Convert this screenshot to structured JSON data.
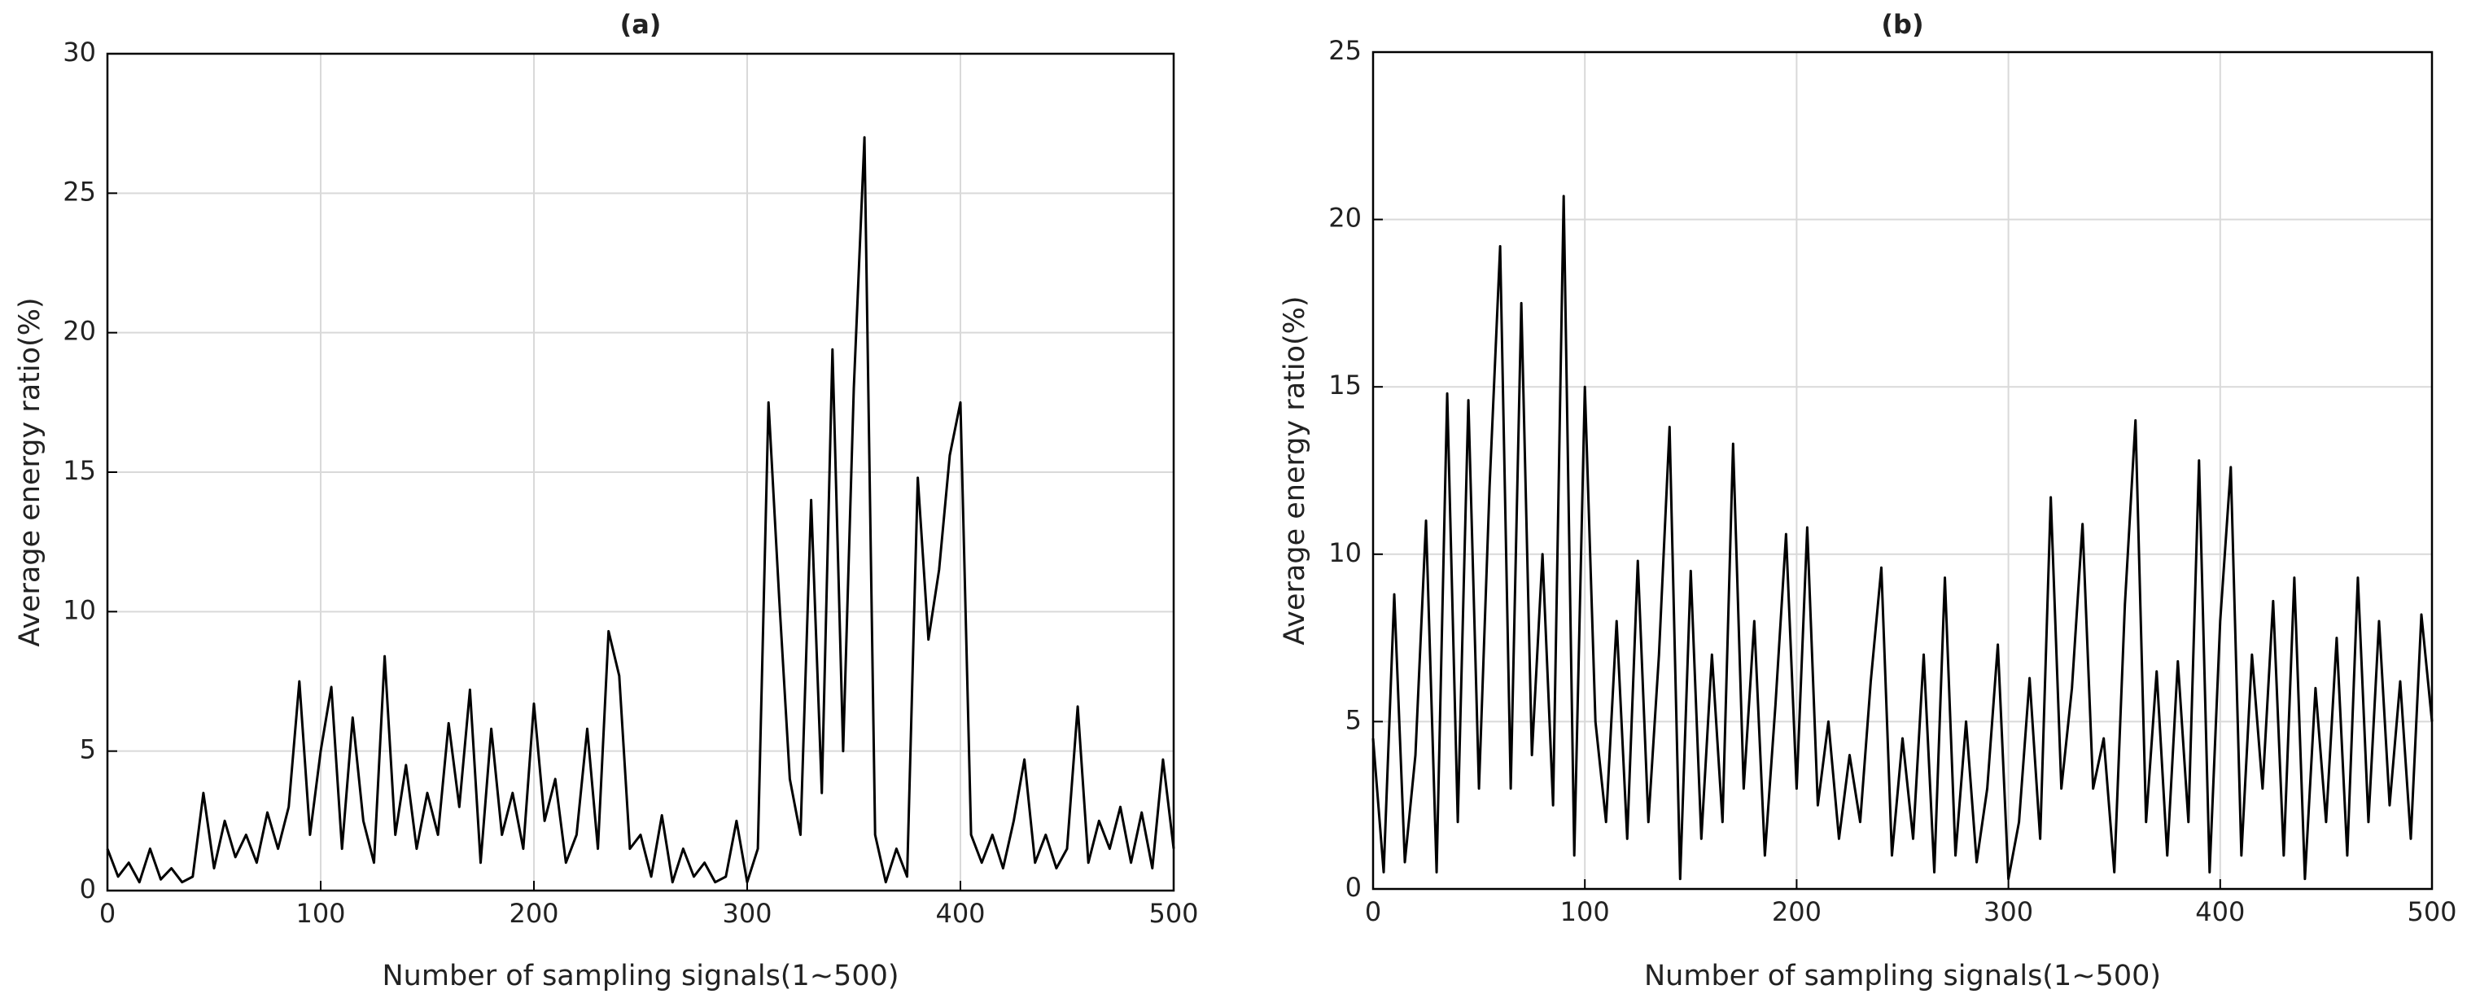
{
  "chart_data": [
    {
      "type": "line",
      "title": "(a)",
      "x_label": "Number of sampling signals(1~500)",
      "y_label": "Average energy ratio(%)",
      "xlim": [
        0,
        500
      ],
      "xticks": [
        0,
        100,
        200,
        300,
        400,
        500
      ],
      "ylim": [
        0,
        30
      ],
      "yticks": [
        0,
        5,
        10,
        15,
        20,
        25,
        30
      ],
      "grid": true,
      "color": "#000000",
      "x": [
        0,
        5,
        10,
        15,
        20,
        25,
        30,
        35,
        40,
        45,
        50,
        55,
        60,
        65,
        70,
        75,
        80,
        85,
        90,
        95,
        100,
        105,
        110,
        115,
        120,
        125,
        130,
        135,
        140,
        145,
        150,
        155,
        160,
        165,
        170,
        175,
        180,
        185,
        190,
        195,
        200,
        205,
        210,
        215,
        220,
        225,
        230,
        235,
        240,
        245,
        250,
        255,
        260,
        265,
        270,
        275,
        280,
        285,
        290,
        295,
        300,
        305,
        310,
        315,
        320,
        325,
        330,
        335,
        340,
        345,
        350,
        355,
        360,
        365,
        370,
        375,
        380,
        385,
        390,
        395,
        400,
        405,
        410,
        415,
        420,
        425,
        430,
        435,
        440,
        445,
        450,
        455,
        460,
        465,
        470,
        475,
        480,
        485,
        490,
        495,
        500
      ],
      "values": [
        1.5,
        0.5,
        1.0,
        0.3,
        1.5,
        0.4,
        0.8,
        0.3,
        0.5,
        3.5,
        0.8,
        2.5,
        1.2,
        2.0,
        1.0,
        2.8,
        1.5,
        3.0,
        7.5,
        2.0,
        5.0,
        7.3,
        1.5,
        6.2,
        2.5,
        1.0,
        8.4,
        2.0,
        4.5,
        1.5,
        3.5,
        2.0,
        6.0,
        3.0,
        7.2,
        1.0,
        5.8,
        2.0,
        3.5,
        1.5,
        6.7,
        2.5,
        4.0,
        1.0,
        2.0,
        5.8,
        1.5,
        9.3,
        7.7,
        1.5,
        2.0,
        0.5,
        2.7,
        0.3,
        1.5,
        0.5,
        1.0,
        0.3,
        0.5,
        2.5,
        0.3,
        1.5,
        17.5,
        10.5,
        4.0,
        2.0,
        14.0,
        3.5,
        19.4,
        5.0,
        18.0,
        27.0,
        2.0,
        0.3,
        1.5,
        0.5,
        14.8,
        9.0,
        11.5,
        15.6,
        17.5,
        2.0,
        1.0,
        2.0,
        0.8,
        2.5,
        4.7,
        1.0,
        2.0,
        0.8,
        1.5,
        6.6,
        1.0,
        2.5,
        1.5,
        3.0,
        1.0,
        2.8,
        0.8,
        4.7,
        1.5
      ]
    },
    {
      "type": "line",
      "title": "(b)",
      "x_label": "Number of sampling signals(1~500)",
      "y_label": "Average energy ratio(%)",
      "xlim": [
        0,
        500
      ],
      "xticks": [
        0,
        100,
        200,
        300,
        400,
        500
      ],
      "ylim": [
        0,
        25
      ],
      "yticks": [
        0,
        5,
        10,
        15,
        20,
        25
      ],
      "grid": true,
      "color": "#000000",
      "x": [
        0,
        5,
        10,
        15,
        20,
        25,
        30,
        35,
        40,
        45,
        50,
        55,
        60,
        65,
        70,
        75,
        80,
        85,
        90,
        95,
        100,
        105,
        110,
        115,
        120,
        125,
        130,
        135,
        140,
        145,
        150,
        155,
        160,
        165,
        170,
        175,
        180,
        185,
        190,
        195,
        200,
        205,
        210,
        215,
        220,
        225,
        230,
        235,
        240,
        245,
        250,
        255,
        260,
        265,
        270,
        275,
        280,
        285,
        290,
        295,
        300,
        305,
        310,
        315,
        320,
        325,
        330,
        335,
        340,
        345,
        350,
        355,
        360,
        365,
        370,
        375,
        380,
        385,
        390,
        395,
        400,
        405,
        410,
        415,
        420,
        425,
        430,
        435,
        440,
        445,
        450,
        455,
        460,
        465,
        470,
        475,
        480,
        485,
        490,
        495,
        500
      ],
      "values": [
        4.5,
        0.5,
        8.8,
        0.8,
        4.0,
        11.0,
        0.5,
        14.8,
        2.0,
        14.6,
        3.0,
        12.0,
        19.2,
        3.0,
        17.5,
        4.0,
        10.0,
        2.5,
        20.7,
        1.0,
        15.0,
        5.0,
        2.0,
        8.0,
        1.5,
        9.8,
        2.0,
        7.0,
        13.8,
        0.3,
        9.5,
        1.5,
        7.0,
        2.0,
        13.3,
        3.0,
        8.0,
        1.0,
        5.5,
        10.6,
        3.0,
        10.8,
        2.5,
        5.0,
        1.5,
        4.0,
        2.0,
        6.2,
        9.6,
        1.0,
        4.5,
        1.5,
        7.0,
        0.5,
        9.3,
        1.0,
        5.0,
        0.8,
        3.0,
        7.3,
        0.3,
        2.0,
        6.3,
        1.5,
        11.7,
        3.0,
        6.0,
        10.9,
        3.0,
        4.5,
        0.5,
        8.5,
        14.0,
        2.0,
        6.5,
        1.0,
        6.8,
        2.0,
        12.8,
        0.5,
        8.0,
        12.6,
        1.0,
        7.0,
        3.0,
        8.6,
        1.0,
        9.3,
        0.3,
        6.0,
        2.0,
        7.5,
        1.0,
        9.3,
        2.0,
        8.0,
        2.5,
        6.2,
        1.5,
        8.2,
        5.0
      ]
    }
  ]
}
